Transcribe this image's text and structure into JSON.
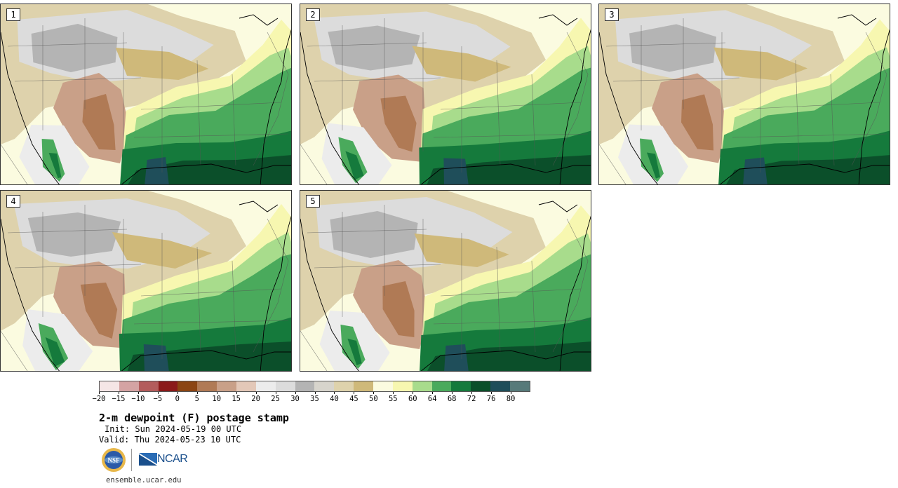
{
  "panels": [
    {
      "label": "1"
    },
    {
      "label": "2"
    },
    {
      "label": "3"
    },
    {
      "label": "4"
    },
    {
      "label": "5"
    }
  ],
  "colorbar": {
    "colors": [
      "#f5e6e6",
      "#d4a3a3",
      "#b35c5c",
      "#8b1a1a",
      "#8b4513",
      "#b07a55",
      "#c9a088",
      "#e3c8b8",
      "#ececec",
      "#dcdcdc",
      "#b4b4b4",
      "#d7d4cc",
      "#ded2ac",
      "#cfb97a",
      "#fbfbe0",
      "#f7f7b0",
      "#a8dc8c",
      "#4aaa5c",
      "#157a3c",
      "#0b4f2a",
      "#1f4e5a",
      "#577a7a"
    ],
    "ticks": [
      "−20",
      "−15",
      "−10",
      "−5",
      "0",
      "5",
      "10",
      "15",
      "20",
      "25",
      "30",
      "35",
      "40",
      "45",
      "50",
      "55",
      "60",
      "64",
      "68",
      "72",
      "76",
      "80"
    ]
  },
  "title": "2-m dewpoint (F) postage stamp",
  "init": "Init: Sun 2024-05-19 00 UTC",
  "valid": "Valid: Thu 2024-05-23 10 UTC",
  "logos": {
    "nsf_text": "NSF",
    "ncar_text": "NCAR"
  },
  "website": "ensemble.ucar.edu"
}
